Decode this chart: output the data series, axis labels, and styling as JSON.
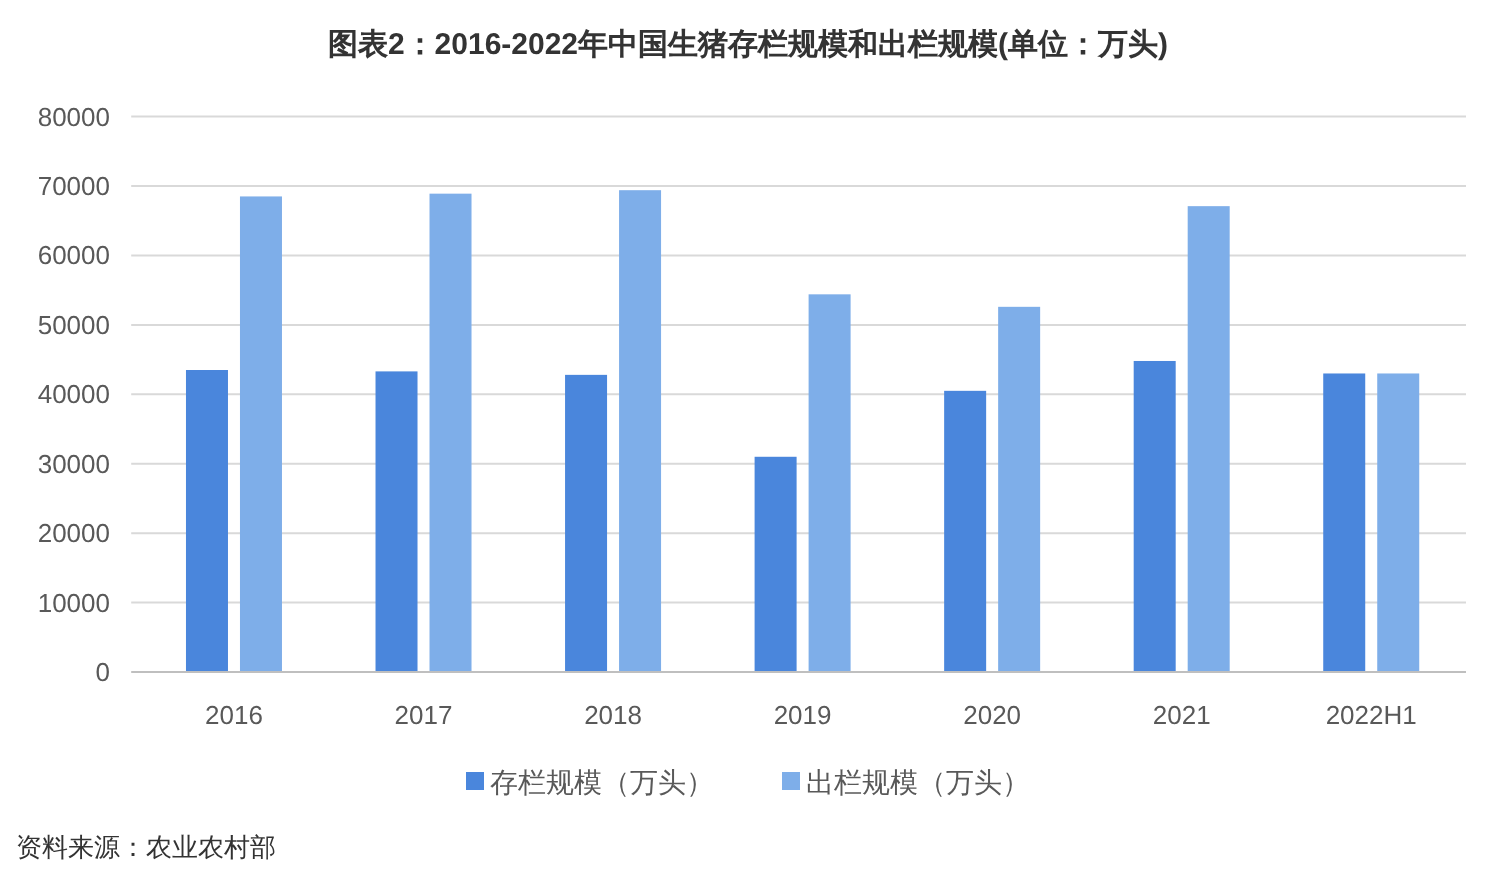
{
  "chart_data": {
    "type": "bar",
    "title": "图表2：2016-2022年中国生猪存栏规模和出栏规模(单位：万头)",
    "categories": [
      "2016",
      "2017",
      "2018",
      "2019",
      "2020",
      "2021",
      "2022H1"
    ],
    "series": [
      {
        "name": "存栏规模（万头）",
        "color": "#4a86dc",
        "values": [
          43500,
          43300,
          42800,
          31000,
          40500,
          44800,
          43000
        ]
      },
      {
        "name": "出栏规模（万头）",
        "color": "#7eaee9",
        "values": [
          68500,
          68900,
          69400,
          54400,
          52600,
          67100,
          43000
        ]
      }
    ],
    "ylim": [
      0,
      80000
    ],
    "yticks": [
      0,
      10000,
      20000,
      30000,
      40000,
      50000,
      60000,
      70000,
      80000
    ],
    "grid": "y",
    "legend": "bottom",
    "annotations": [
      "资料来源：农业农村部"
    ]
  }
}
